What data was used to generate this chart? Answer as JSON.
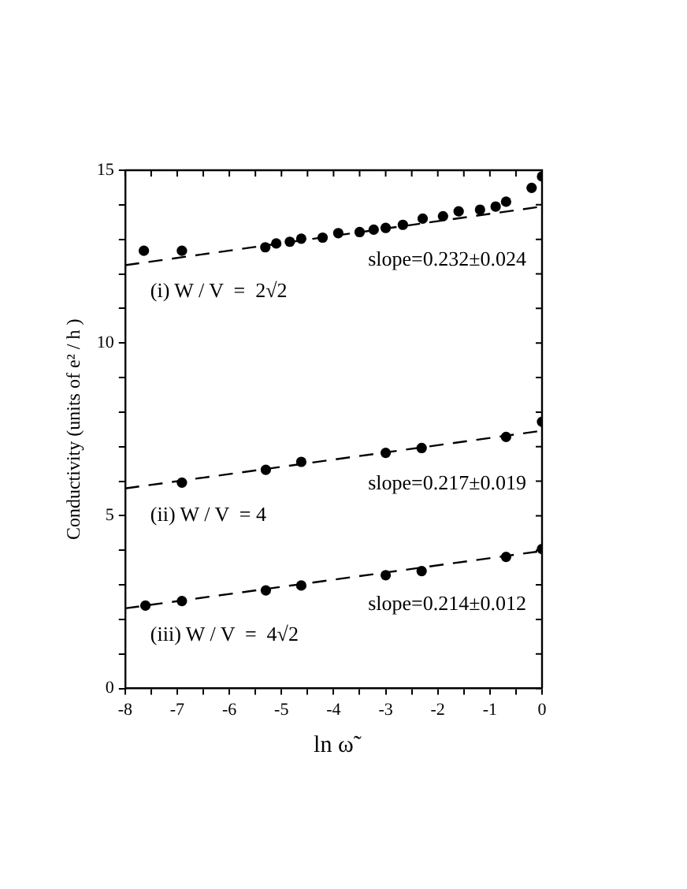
{
  "chart_data": {
    "type": "scatter",
    "xlabel": "ln ω̃",
    "ylabel": "Conductivity (units of e² / h )",
    "series": [
      {
        "type": "scatter",
        "color": "#000000",
        "x": [
          -7.64,
          -6.91,
          -5.31,
          -5.1,
          -4.84,
          -4.62,
          -4.21,
          -3.91,
          -3.5,
          -3.23,
          -3.0,
          -2.67,
          -2.29,
          -1.9,
          -1.6,
          -1.19,
          -0.89,
          -0.69,
          -0.2,
          0
        ],
        "values": [
          12.67,
          12.67,
          12.77,
          12.88,
          12.93,
          13.02,
          13.05,
          13.18,
          13.21,
          13.28,
          13.33,
          13.42,
          13.6,
          13.67,
          13.81,
          13.86,
          13.95,
          14.09,
          14.49,
          14.82
        ]
      },
      {
        "type": "line",
        "color": "#000000",
        "x": [
          -8,
          0
        ],
        "values": [
          12.25,
          13.95
        ],
        "line_style": "dashed",
        "marker": "none"
      },
      {
        "type": "scatter",
        "color": "#000000",
        "x": [
          -6.91,
          -5.3,
          -4.62,
          -3.0,
          -2.31,
          -0.69,
          0
        ],
        "values": [
          5.96,
          6.33,
          6.56,
          6.82,
          6.96,
          7.28,
          7.72
        ]
      },
      {
        "type": "line",
        "color": "#000000",
        "x": [
          -8,
          0
        ],
        "values": [
          5.79,
          7.46
        ],
        "line_style": "dashed",
        "marker": "none"
      },
      {
        "type": "scatter",
        "color": "#000000",
        "x": [
          -7.61,
          -6.91,
          -5.3,
          -4.62,
          -3.0,
          -2.31,
          -0.69,
          0
        ],
        "values": [
          2.4,
          2.53,
          2.84,
          2.98,
          3.28,
          3.4,
          3.81,
          4.04
        ]
      },
      {
        "type": "line",
        "color": "#000000",
        "x": [
          -8,
          0
        ],
        "values": [
          2.32,
          3.98
        ],
        "line_style": "dashed",
        "marker": "none"
      }
    ],
    "marker": "circle",
    "xlim": [
      -8,
      0
    ],
    "xticks": [
      -8,
      {
        "value": -7.5,
        "label": null
      },
      -7,
      {
        "value": -6.5,
        "label": null
      },
      -6,
      {
        "value": -5.5,
        "label": null
      },
      -5,
      {
        "value": -4.5,
        "label": null
      },
      -4,
      {
        "value": -3.5,
        "label": null
      },
      -3,
      {
        "value": -2.5,
        "label": null
      },
      -2,
      {
        "value": -1.5,
        "label": null
      },
      -1,
      {
        "value": -0.5,
        "label": null
      },
      0
    ],
    "ylim": [
      0,
      15
    ],
    "yticks": [
      0,
      {
        "value": 1,
        "label": null
      },
      {
        "value": 2,
        "label": null
      },
      {
        "value": 3,
        "label": null
      },
      {
        "value": 4,
        "label": null
      },
      5,
      {
        "value": 6,
        "label": null
      },
      {
        "value": 7,
        "label": null
      },
      {
        "value": 8,
        "label": null
      },
      {
        "value": 9,
        "label": null
      },
      10,
      {
        "value": 11,
        "label": null
      },
      {
        "value": 12,
        "label": null
      },
      {
        "value": 13,
        "label": null
      },
      {
        "value": 14,
        "label": null
      },
      15
    ],
    "grid": false,
    "legend": false,
    "annotations": [
      "slope=0.232±0.024",
      "(i) W / V  =  2√2",
      "slope=0.217±0.019",
      "(ii) W / V  = 4",
      "slope=0.214±0.012",
      "(iii) W / V  =  4√2"
    ]
  }
}
